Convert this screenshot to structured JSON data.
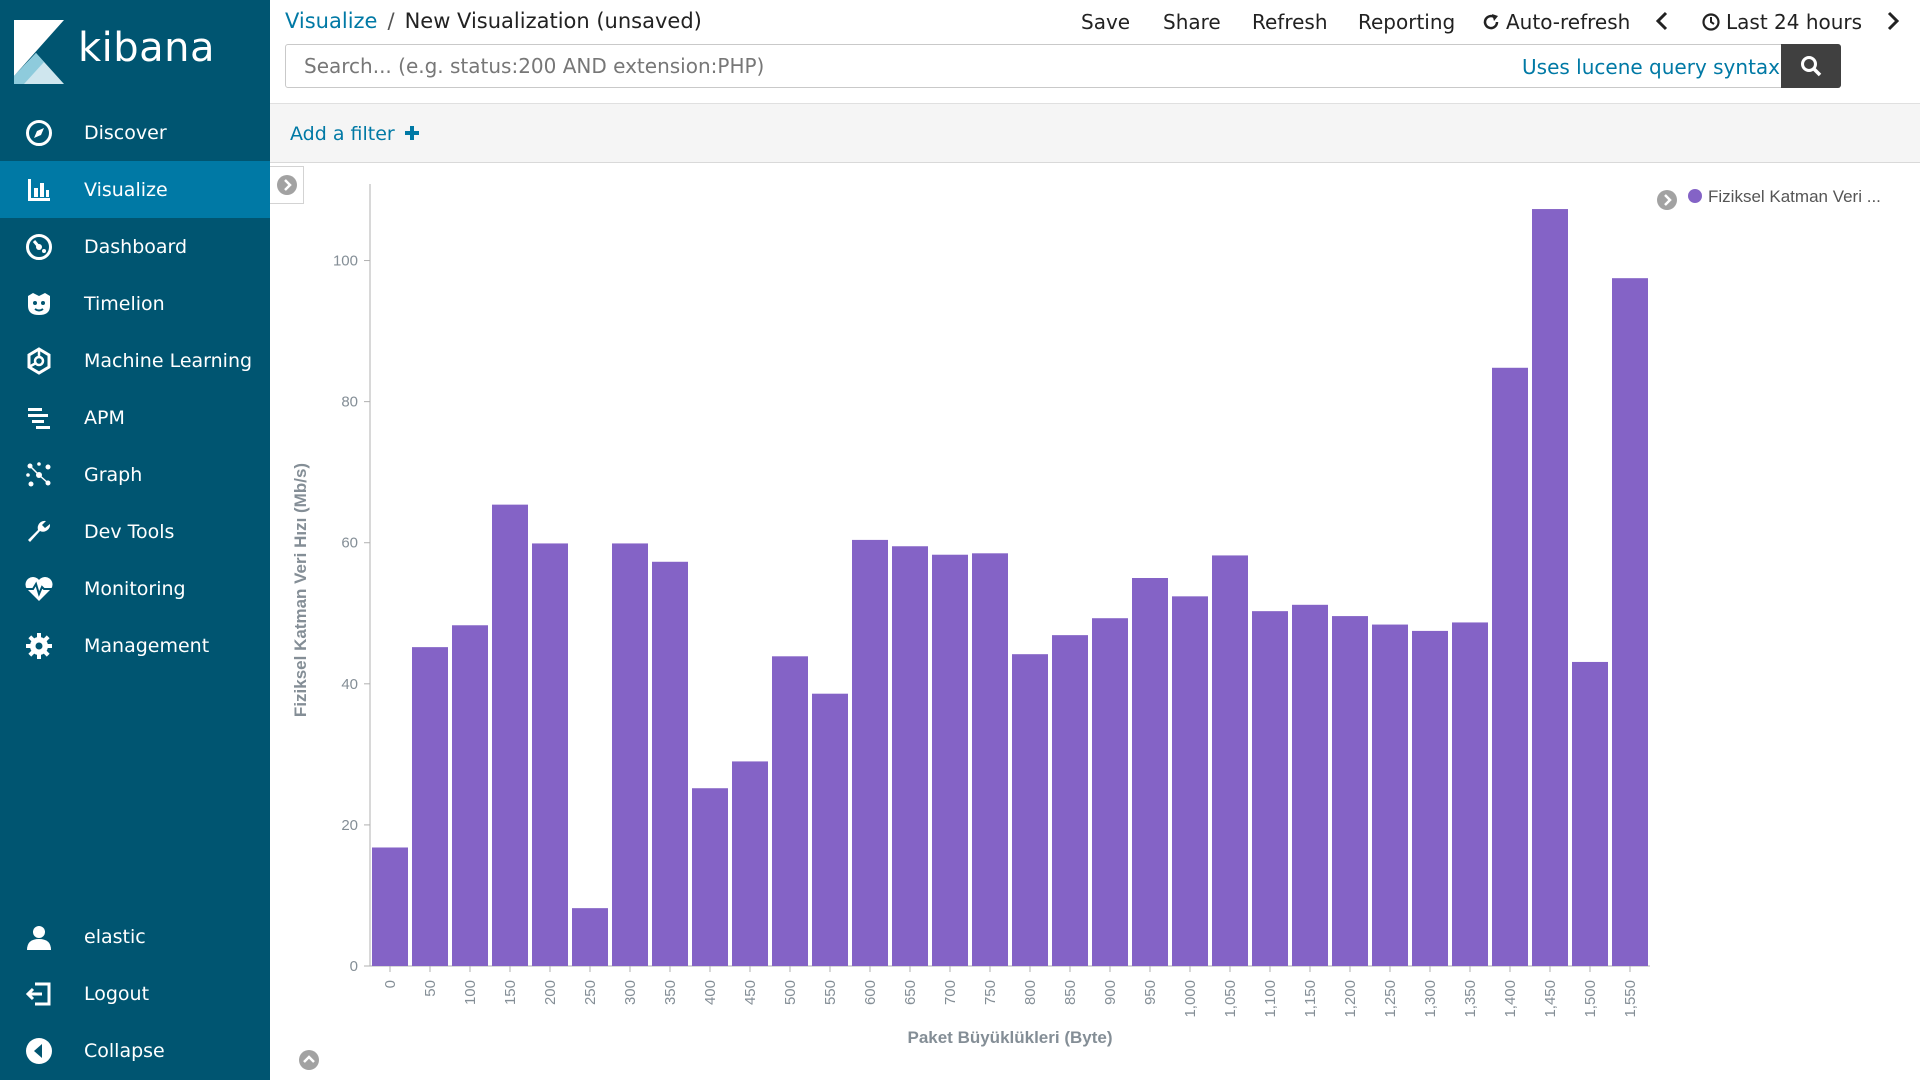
{
  "app": {
    "name": "kibana"
  },
  "sidebar": {
    "items": [
      {
        "label": "Discover",
        "icon": "compass-icon"
      },
      {
        "label": "Visualize",
        "icon": "bar-chart-icon",
        "active": true
      },
      {
        "label": "Dashboard",
        "icon": "dashboard-icon"
      },
      {
        "label": "Timelion",
        "icon": "timelion-icon"
      },
      {
        "label": "Machine Learning",
        "icon": "machine-learning-icon"
      },
      {
        "label": "APM",
        "icon": "apm-icon"
      },
      {
        "label": "Graph",
        "icon": "graph-icon"
      },
      {
        "label": "Dev Tools",
        "icon": "wrench-icon"
      },
      {
        "label": "Monitoring",
        "icon": "heartbeat-icon"
      },
      {
        "label": "Management",
        "icon": "gear-icon"
      }
    ],
    "bottom": [
      {
        "label": "elastic",
        "icon": "user-icon"
      },
      {
        "label": "Logout",
        "icon": "logout-icon"
      },
      {
        "label": "Collapse",
        "icon": "collapse-icon"
      }
    ]
  },
  "header": {
    "breadcrumb_link": "Visualize",
    "breadcrumb_sep": "/",
    "breadcrumb_current": "New Visualization (unsaved)",
    "save": "Save",
    "share": "Share",
    "refresh": "Refresh",
    "reporting": "Reporting",
    "auto_refresh": "Auto-refresh",
    "time_range": "Last 24 hours"
  },
  "search": {
    "placeholder": "Search... (e.g. status:200 AND extension:PHP)",
    "value": "",
    "syntax_link": "Uses lucene query syntax"
  },
  "filter": {
    "add_label": "Add a filter"
  },
  "colors": {
    "bar": "#8463c6",
    "accent": "#0079a5",
    "sidebar": "#005571"
  },
  "chart_data": {
    "type": "bar",
    "xlabel": "Paket Büyüklükleri (Byte)",
    "ylabel": "Fiziksel Katman Veri Hızı (Mb/s)",
    "legend": {
      "label": "Fiziksel Katman Veri ...",
      "position": "top-right"
    },
    "ylim": [
      0,
      110
    ],
    "yticks": [
      0,
      20,
      40,
      60,
      80,
      100
    ],
    "categories": [
      "0",
      "50",
      "100",
      "150",
      "200",
      "250",
      "300",
      "350",
      "400",
      "450",
      "500",
      "550",
      "600",
      "650",
      "700",
      "750",
      "800",
      "850",
      "900",
      "950",
      "1,000",
      "1,050",
      "1,100",
      "1,150",
      "1,200",
      "1,250",
      "1,300",
      "1,350",
      "1,400",
      "1,450",
      "1,500",
      "1,550"
    ],
    "series": [
      {
        "name": "Fiziksel Katman Veri ...",
        "values": [
          16.8,
          45.2,
          48.3,
          65.4,
          59.9,
          8.2,
          59.9,
          57.3,
          25.2,
          29.0,
          43.9,
          38.6,
          60.4,
          59.5,
          58.3,
          58.5,
          44.2,
          46.9,
          49.3,
          55.0,
          52.4,
          58.2,
          50.3,
          51.2,
          49.6,
          48.4,
          47.5,
          48.7,
          84.8,
          107.3,
          43.1,
          97.5
        ]
      }
    ]
  }
}
